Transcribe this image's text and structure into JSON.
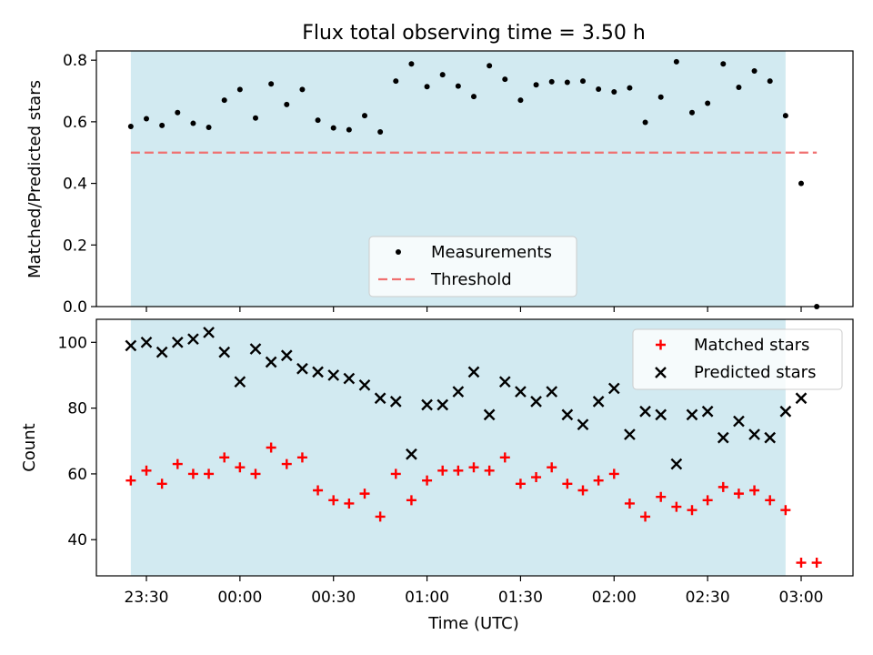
{
  "title": "Flux total observing time = 3.50 h",
  "chart_data": [
    {
      "type": "scatter",
      "ylabel": "Matched/Predicted stars",
      "ylim": [
        0.0,
        0.83
      ],
      "yticks": [
        0.0,
        0.2,
        0.4,
        0.6,
        0.8
      ],
      "ytick_labels": [
        "0.0",
        "0.2",
        "0.4",
        "0.6",
        "0.8"
      ],
      "x_times": [
        "23:25",
        "23:30",
        "23:35",
        "23:40",
        "23:45",
        "23:50",
        "23:55",
        "00:00",
        "00:05",
        "00:10",
        "00:15",
        "00:20",
        "00:25",
        "00:30",
        "00:35",
        "00:40",
        "00:45",
        "00:50",
        "00:55",
        "01:00",
        "01:05",
        "01:10",
        "01:15",
        "01:20",
        "01:25",
        "01:30",
        "01:35",
        "01:40",
        "01:45",
        "01:50",
        "01:55",
        "02:00",
        "02:05",
        "02:10",
        "02:15",
        "02:20",
        "02:25",
        "02:30",
        "02:35",
        "02:40",
        "02:45",
        "02:50",
        "02:55",
        "03:00",
        "03:05"
      ],
      "series": [
        {
          "name": "Measurements",
          "marker": "dot",
          "color": "#000000",
          "values": [
            0.585,
            0.61,
            0.588,
            0.63,
            0.595,
            0.582,
            0.67,
            0.705,
            0.612,
            0.723,
            0.656,
            0.705,
            0.605,
            0.58,
            0.574,
            0.62,
            0.567,
            0.732,
            0.788,
            0.714,
            0.753,
            0.716,
            0.682,
            0.782,
            0.738,
            0.67,
            0.72,
            0.73,
            0.728,
            0.732,
            0.706,
            0.697,
            0.71,
            0.598,
            0.68,
            0.795,
            0.63,
            0.66,
            0.788,
            0.712,
            0.765,
            0.732,
            0.62,
            0.4,
            0.0
          ]
        },
        {
          "name": "Threshold",
          "style": "dashed",
          "color": "#f07070",
          "x_range": [
            "23:25",
            "03:05"
          ],
          "value": 0.5
        }
      ],
      "shaded_region": {
        "from": "23:25",
        "to": "02:55",
        "color": "#add8e6"
      },
      "legend": "lower-center"
    },
    {
      "type": "scatter",
      "xlabel": "Time (UTC)",
      "ylabel": "Count",
      "ylim": [
        29,
        107
      ],
      "yticks": [
        40,
        60,
        80,
        100
      ],
      "ytick_labels": [
        "40",
        "60",
        "80",
        "100"
      ],
      "x_ticks": [
        "23:30",
        "00:00",
        "00:30",
        "01:00",
        "01:30",
        "02:00",
        "02:30",
        "03:00"
      ],
      "x_times": [
        "23:25",
        "23:30",
        "23:35",
        "23:40",
        "23:45",
        "23:50",
        "23:55",
        "00:00",
        "00:05",
        "00:10",
        "00:15",
        "00:20",
        "00:25",
        "00:30",
        "00:35",
        "00:40",
        "00:45",
        "00:50",
        "00:55",
        "01:00",
        "01:05",
        "01:10",
        "01:15",
        "01:20",
        "01:25",
        "01:30",
        "01:35",
        "01:40",
        "01:45",
        "01:50",
        "01:55",
        "02:00",
        "02:05",
        "02:10",
        "02:15",
        "02:20",
        "02:25",
        "02:30",
        "02:35",
        "02:40",
        "02:45",
        "02:50",
        "02:55",
        "03:00",
        "03:05"
      ],
      "series": [
        {
          "name": "Matched stars",
          "marker": "plus",
          "color": "#ff0000",
          "values": [
            58,
            61,
            57,
            63,
            60,
            60,
            65,
            62,
            60,
            68,
            63,
            65,
            55,
            52,
            51,
            54,
            47,
            60,
            52,
            58,
            61,
            61,
            62,
            61,
            65,
            57,
            59,
            62,
            57,
            55,
            58,
            60,
            51,
            47,
            53,
            50,
            49,
            52,
            56,
            54,
            55,
            52,
            49,
            33,
            33
          ]
        },
        {
          "name": "Predicted stars",
          "marker": "x",
          "color": "#000000",
          "values": [
            99,
            100,
            97,
            100,
            101,
            103,
            97,
            88,
            98,
            94,
            96,
            92,
            91,
            90,
            89,
            87,
            83,
            82,
            66,
            81,
            81,
            85,
            91,
            78,
            88,
            85,
            82,
            85,
            78,
            75,
            82,
            86,
            72,
            79,
            78,
            63,
            78,
            79,
            71,
            76,
            72,
            71,
            79,
            83,
            null
          ]
        }
      ],
      "shaded_region": {
        "from": "23:25",
        "to": "02:55",
        "color": "#add8e6"
      },
      "legend": "top-right"
    }
  ]
}
